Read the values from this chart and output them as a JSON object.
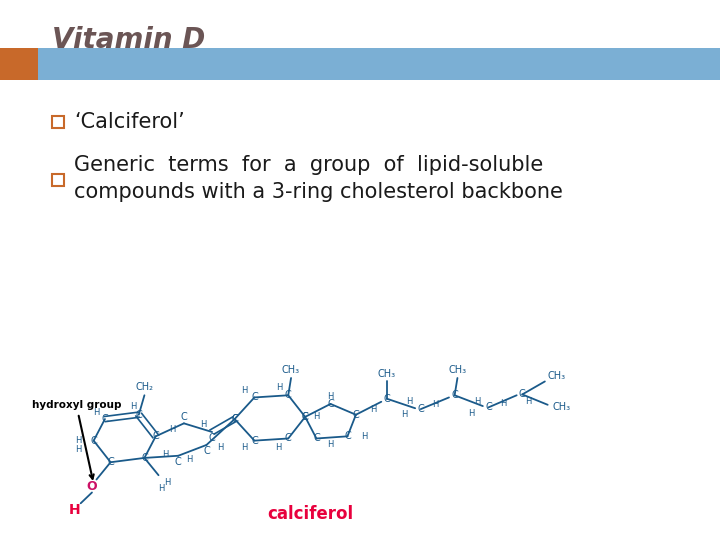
{
  "title": "Vitamin D",
  "title_color": "#6b5555",
  "title_fontsize": 20,
  "title_style": "italic",
  "title_weight": "bold",
  "header_bar_color": "#7bafd4",
  "header_accent_color": "#c8692a",
  "bullet_color": "#c8692a",
  "bullet1_text": "‘Calciferol’",
  "bullet2_line1": "Generic  terms  for  a  group  of  lipid-soluble",
  "bullet2_line2": "compounds with a 3-ring cholesterol backbone",
  "bullet_text_color": "#1a1a1a",
  "bullet_fontsize": 15,
  "background_color": "#ffffff",
  "mol_blue": "#1a5a8a",
  "mol_red": "#e8003d",
  "mol_pink": "#cc1166"
}
